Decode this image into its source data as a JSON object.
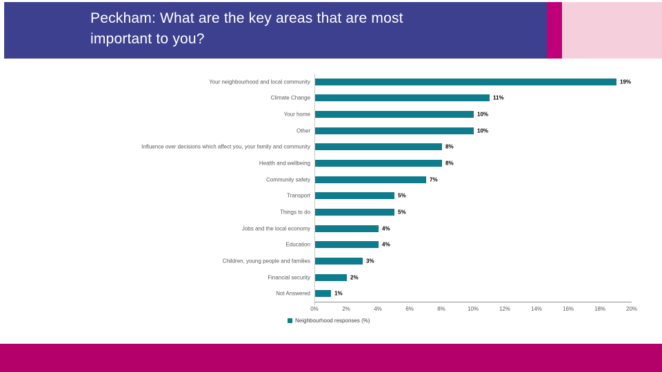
{
  "header": {
    "title_lines": [
      "Peckham: What are the key areas that are most",
      "important to you?"
    ]
  },
  "colors": {
    "banner": "#3d408e",
    "accent_stripe": "#c00078",
    "pink_block": "#f6cfdd",
    "footer": "#b40069",
    "bar": "#0e7c8c",
    "axis_line": "#8c8c8c",
    "label_text": "#595959",
    "value_text": "#000000"
  },
  "chart_data": {
    "type": "bar",
    "orientation": "horizontal",
    "title": "",
    "xlabel": "",
    "ylabel": "",
    "xlim": [
      0,
      20
    ],
    "grid": false,
    "legend_position": "bottom-left",
    "legend": "Neighbourhood responses (%)",
    "categories": [
      "Your neighbourhood and local community",
      "Climate Change",
      "Your home",
      "Other",
      "Influence over decisions which affect you, your family and community",
      "Health and wellbeing",
      "Community safety",
      "Transport",
      "Things to do",
      "Jobs and the local economy",
      "Education",
      "Children, young people and families",
      "Financial security",
      "Not Answered"
    ],
    "values": [
      19,
      11,
      10,
      10,
      8,
      8,
      7,
      5,
      5,
      4,
      4,
      3,
      2,
      1
    ],
    "value_labels": [
      "19%",
      "11%",
      "10%",
      "10%",
      "8%",
      "8%",
      "7%",
      "5%",
      "5%",
      "4%",
      "4%",
      "3%",
      "2%",
      "1%"
    ],
    "x_ticks": [
      "0%",
      "2%",
      "4%",
      "6%",
      "8%",
      "10%",
      "12%",
      "14%",
      "16%",
      "18%",
      "20%"
    ]
  }
}
